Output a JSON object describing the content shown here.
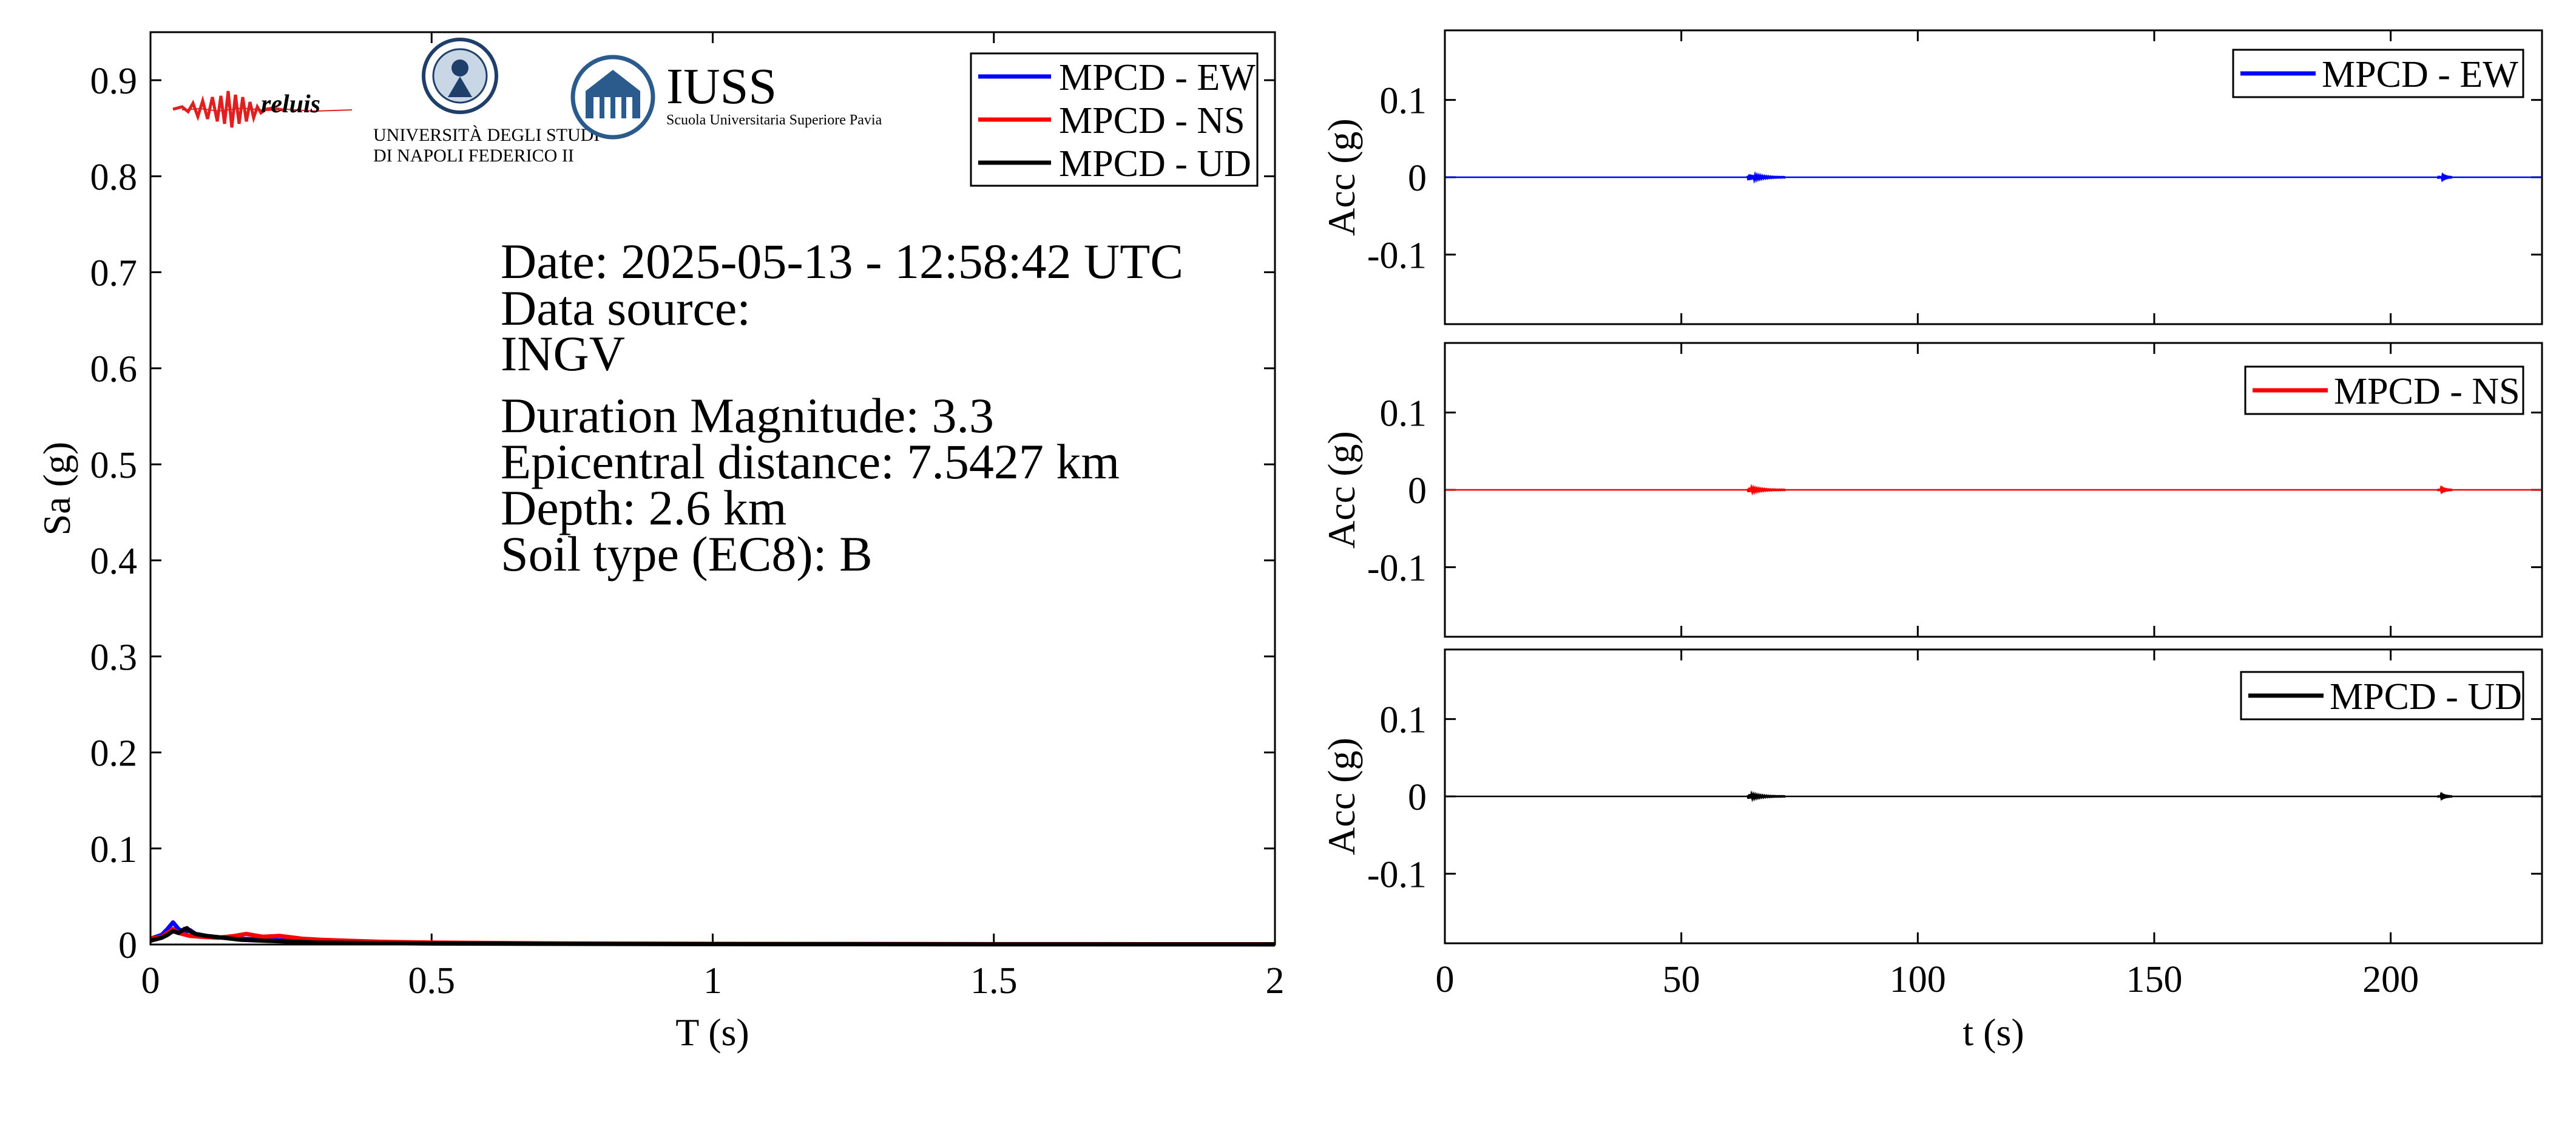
{
  "colors": {
    "ew": "#0000ff",
    "ns": "#ff0000",
    "ud": "#000000",
    "reluis_text": "#1a2a8c",
    "iuss_blue": "#2a5b8c"
  },
  "logos": {
    "reluis": "reluis",
    "unina_line1": "UNIVERSITÀ DEGLI STUDI",
    "unina_line2": "DI NAPOLI FEDERICO II",
    "iuss_name": "IUSS",
    "iuss_sub": "Scuola Universitaria Superiore Pavia"
  },
  "info": {
    "date": "Date: 2025-05-13 - 12:58:42 UTC",
    "source_label": "Data source:",
    "source": "INGV",
    "magnitude": "Duration Magnitude: 3.3",
    "distance": "Epicentral distance: 7.5427 km",
    "depth": "Depth: 2.6 km",
    "soil": "Soil type (EC8): B"
  },
  "chart_data": [
    {
      "type": "line",
      "xlabel": "T (s)",
      "ylabel": "Sa (g)",
      "xlim": [
        0,
        2
      ],
      "ylim": [
        0,
        0.95
      ],
      "xticks": [
        0,
        0.5,
        1,
        1.5,
        2
      ],
      "xtick_labels": [
        "0",
        "0.5",
        "1",
        "1.5",
        "2"
      ],
      "yticks": [
        0,
        0.1,
        0.2,
        0.3,
        0.4,
        0.5,
        0.6,
        0.7,
        0.8,
        0.9
      ],
      "ytick_labels": [
        "0",
        "0.1",
        "0.2",
        "0.3",
        "0.4",
        "0.5",
        "0.6",
        "0.7",
        "0.8",
        "0.9"
      ],
      "legend": "top-right",
      "series": [
        {
          "name": "MPCD - EW",
          "color": "#0000ff",
          "x": [
            0,
            0.02,
            0.03,
            0.04,
            0.05,
            0.06,
            0.07,
            0.08,
            0.1,
            0.13,
            0.16,
            0.2,
            0.25,
            0.3,
            0.4,
            0.5,
            0.7,
            1.0,
            1.5,
            2.0
          ],
          "y": [
            0.006,
            0.01,
            0.016,
            0.023,
            0.016,
            0.013,
            0.015,
            0.011,
            0.008,
            0.007,
            0.006,
            0.005,
            0.004,
            0.003,
            0.002,
            0.0015,
            0.001,
            0.0006,
            0.0003,
            0.0002
          ]
        },
        {
          "name": "MPCD - NS",
          "color": "#ff0000",
          "x": [
            0,
            0.02,
            0.03,
            0.04,
            0.05,
            0.07,
            0.09,
            0.12,
            0.15,
            0.17,
            0.2,
            0.23,
            0.27,
            0.3,
            0.35,
            0.4,
            0.5,
            0.7,
            1.0,
            1.5,
            2.0
          ],
          "y": [
            0.006,
            0.008,
            0.012,
            0.016,
            0.012,
            0.009,
            0.008,
            0.007,
            0.009,
            0.011,
            0.008,
            0.009,
            0.006,
            0.005,
            0.004,
            0.003,
            0.002,
            0.0012,
            0.0007,
            0.0004,
            0.0003
          ]
        },
        {
          "name": "MPCD - UD",
          "color": "#000000",
          "x": [
            0,
            0.02,
            0.03,
            0.04,
            0.05,
            0.06,
            0.065,
            0.07,
            0.08,
            0.1,
            0.13,
            0.16,
            0.2,
            0.3,
            0.4,
            0.5,
            0.7,
            1.0,
            1.5,
            2.0
          ],
          "y": [
            0.004,
            0.007,
            0.01,
            0.014,
            0.012,
            0.016,
            0.017,
            0.014,
            0.011,
            0.009,
            0.007,
            0.005,
            0.004,
            0.002,
            0.0015,
            0.001,
            0.0007,
            0.0004,
            0.0002,
            0.0001
          ]
        }
      ]
    },
    {
      "type": "line",
      "xlabel": "",
      "ylabel": "Acc (g)",
      "xlim": [
        0,
        232
      ],
      "ylim": [
        -0.19,
        0.19
      ],
      "yticks": [
        -0.1,
        0,
        0.1
      ],
      "ytick_labels": [
        "-0.1",
        "0",
        "0.1"
      ],
      "legend": "top-right",
      "series": [
        {
          "name": "MPCD - EW",
          "color": "#0000ff",
          "events": [
            {
              "t_start": 64,
              "t_end": 72,
              "peak": 0.004
            },
            {
              "t_start": 210,
              "t_end": 213,
              "peak": 0.002
            }
          ]
        }
      ]
    },
    {
      "type": "line",
      "xlabel": "",
      "ylabel": "Acc (g)",
      "xlim": [
        0,
        232
      ],
      "ylim": [
        -0.19,
        0.19
      ],
      "yticks": [
        -0.1,
        0,
        0.1
      ],
      "ytick_labels": [
        "-0.1",
        "0",
        "0.1"
      ],
      "legend": "top-right",
      "series": [
        {
          "name": "MPCD - NS",
          "color": "#ff0000",
          "events": [
            {
              "t_start": 64,
              "t_end": 72,
              "peak": 0.003
            },
            {
              "t_start": 210,
              "t_end": 213,
              "peak": 0.0015
            }
          ]
        }
      ]
    },
    {
      "type": "line",
      "xlabel": "t (s)",
      "ylabel": "Acc (g)",
      "xlim": [
        0,
        232
      ],
      "ylim": [
        -0.19,
        0.19
      ],
      "xticks": [
        0,
        50,
        100,
        150,
        200
      ],
      "xtick_labels": [
        "0",
        "50",
        "100",
        "150",
        "200"
      ],
      "yticks": [
        -0.1,
        0,
        0.1
      ],
      "ytick_labels": [
        "-0.1",
        "0",
        "0.1"
      ],
      "legend": "top-right",
      "series": [
        {
          "name": "MPCD - UD",
          "color": "#000000",
          "events": [
            {
              "t_start": 64,
              "t_end": 72,
              "peak": 0.003
            },
            {
              "t_start": 210,
              "t_end": 213,
              "peak": 0.0015
            }
          ]
        }
      ]
    }
  ]
}
